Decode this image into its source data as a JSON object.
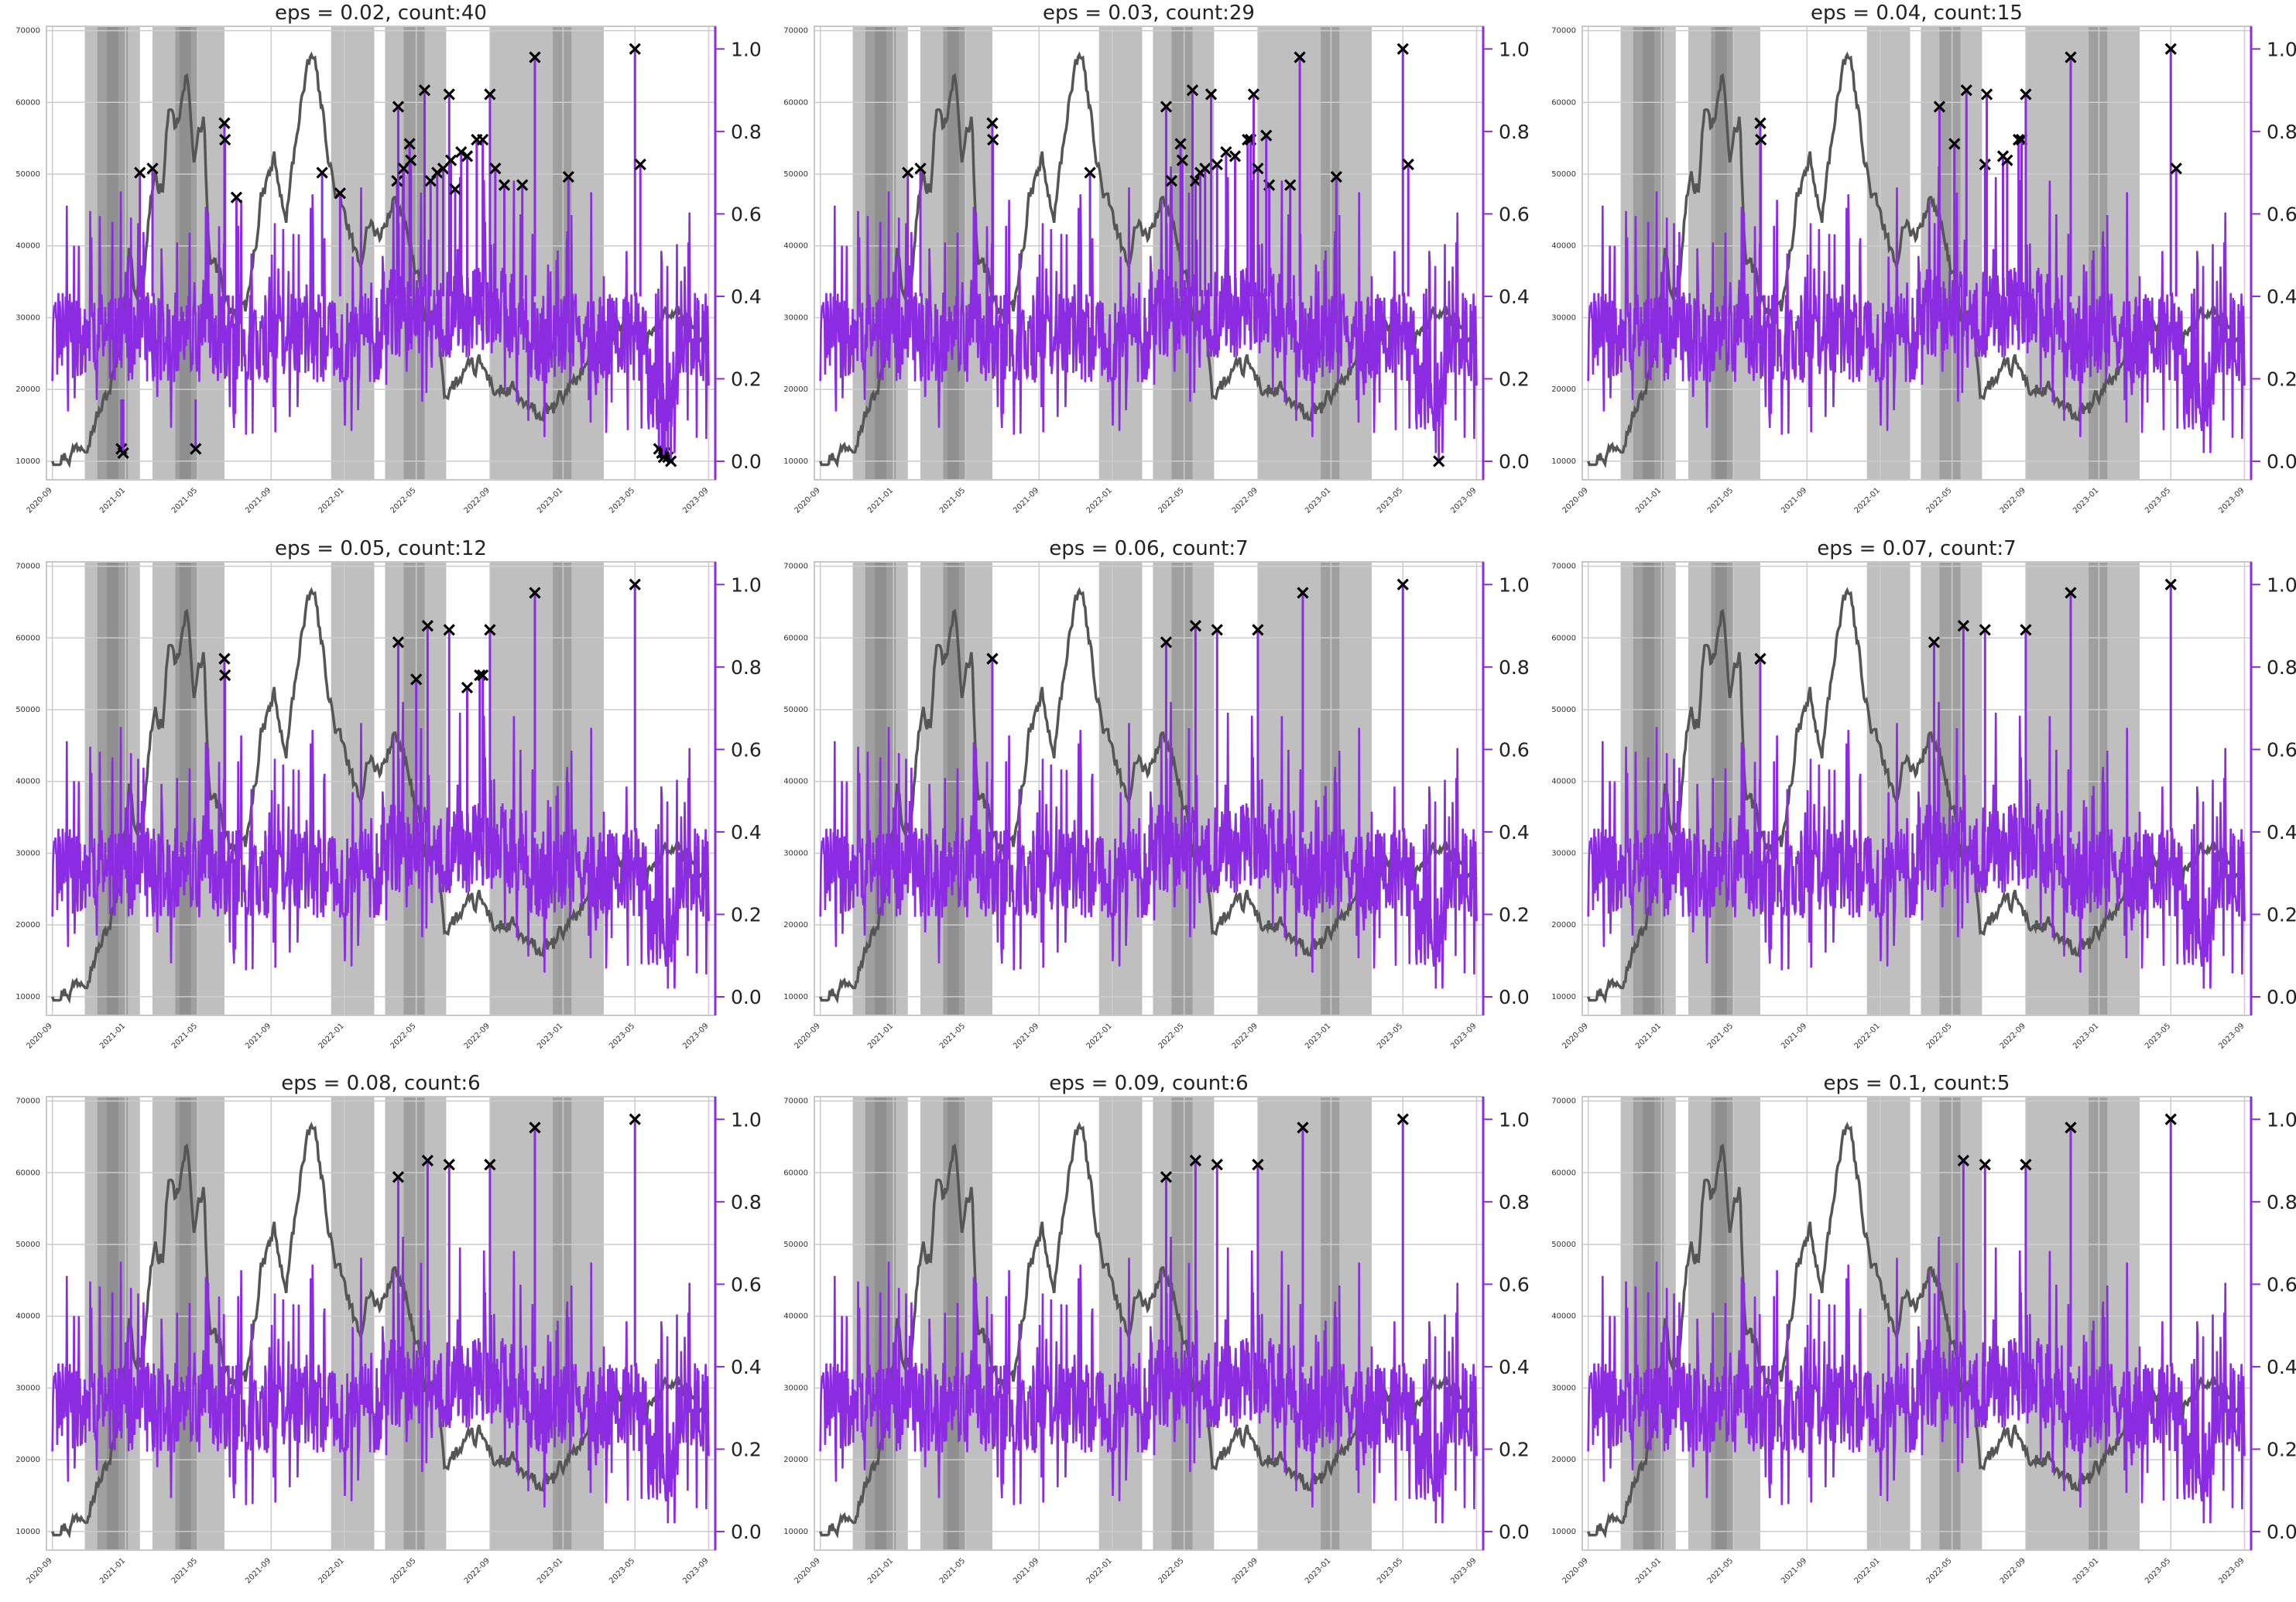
{
  "figure": {
    "colors": {
      "price_line": "#555555",
      "score_line": "#8B2BE2",
      "shade": "#808080",
      "grid": "#cccccc",
      "marker": "#000000",
      "right_axis": "#8B2BE2"
    },
    "shared_axes": {
      "x_ticks": [
        "2020-09",
        "2021-01",
        "2021-05",
        "2021-09",
        "2022-01",
        "2022-05",
        "2022-09",
        "2023-01",
        "2023-05",
        "2023-09"
      ],
      "left_y_ticks": [
        10000,
        20000,
        30000,
        40000,
        50000,
        60000,
        70000
      ],
      "right_y_ticks": [
        "0.0",
        "0.2",
        "0.4",
        "0.6",
        "0.8",
        "1.0"
      ]
    },
    "shaded_regions": [
      {
        "start": "2020-10-25",
        "end": "2021-01-25",
        "depth": 1
      },
      {
        "start": "2020-11-15",
        "end": "2021-01-05",
        "depth": 2
      },
      {
        "start": "2020-12-01",
        "end": "2020-12-20",
        "depth": 3
      },
      {
        "start": "2021-02-15",
        "end": "2021-06-15",
        "depth": 1
      },
      {
        "start": "2021-03-25",
        "end": "2021-05-01",
        "depth": 2
      },
      {
        "start": "2021-04-01",
        "end": "2021-04-20",
        "depth": 3
      },
      {
        "start": "2021-12-10",
        "end": "2022-02-20",
        "depth": 1
      },
      {
        "start": "2022-03-10",
        "end": "2022-06-20",
        "depth": 1
      },
      {
        "start": "2022-04-10",
        "end": "2022-05-15",
        "depth": 2
      },
      {
        "start": "2022-09-01",
        "end": "2023-03-10",
        "depth": 1
      },
      {
        "start": "2022-12-15",
        "end": "2023-01-15",
        "depth": 2
      }
    ]
  },
  "chart_data": [
    {
      "type": "line",
      "title": "eps = 0.02, count:40",
      "series": [
        {
          "axis": "left"
        },
        {
          "axis": "right"
        }
      ],
      "anomalies": [
        {
          "date": "2020-12-25",
          "value": 0.03
        },
        {
          "date": "2020-12-28",
          "value": 0.02
        },
        {
          "date": "2021-01-25",
          "value": 0.7
        },
        {
          "date": "2021-02-15",
          "value": 0.71
        },
        {
          "date": "2021-04-28",
          "value": 0.03
        },
        {
          "date": "2021-06-15",
          "value": 0.82
        },
        {
          "date": "2021-06-16",
          "value": 0.78
        },
        {
          "date": "2021-07-05",
          "value": 0.64
        },
        {
          "date": "2021-11-25",
          "value": 0.7
        },
        {
          "date": "2021-12-25",
          "value": 0.65
        },
        {
          "date": "2022-03-30",
          "value": 0.68
        },
        {
          "date": "2022-04-01",
          "value": 0.86
        },
        {
          "date": "2022-04-10",
          "value": 0.71
        },
        {
          "date": "2022-04-20",
          "value": 0.77
        },
        {
          "date": "2022-04-22",
          "value": 0.73
        },
        {
          "date": "2022-05-15",
          "value": 0.9
        },
        {
          "date": "2022-05-25",
          "value": 0.68
        },
        {
          "date": "2022-06-05",
          "value": 0.7
        },
        {
          "date": "2022-06-15",
          "value": 0.71
        },
        {
          "date": "2022-06-25",
          "value": 0.89
        },
        {
          "date": "2022-06-28",
          "value": 0.73
        },
        {
          "date": "2022-07-05",
          "value": 0.66
        },
        {
          "date": "2022-07-15",
          "value": 0.75
        },
        {
          "date": "2022-07-25",
          "value": 0.74
        },
        {
          "date": "2022-08-10",
          "value": 0.78
        },
        {
          "date": "2022-08-20",
          "value": 0.78
        },
        {
          "date": "2022-09-01",
          "value": 0.89
        },
        {
          "date": "2022-09-10",
          "value": 0.71
        },
        {
          "date": "2022-09-25",
          "value": 0.67
        },
        {
          "date": "2022-10-25",
          "value": 0.67
        },
        {
          "date": "2022-11-15",
          "value": 0.98
        },
        {
          "date": "2023-01-10",
          "value": 0.69
        },
        {
          "date": "2023-05-01",
          "value": 1.0
        },
        {
          "date": "2023-05-10",
          "value": 0.72
        },
        {
          "date": "2023-06-10",
          "value": 0.03
        },
        {
          "date": "2023-06-15",
          "value": 0.02
        },
        {
          "date": "2023-06-20",
          "value": 0.02
        },
        {
          "date": "2023-06-25",
          "value": 0.01
        },
        {
          "date": "2023-06-30",
          "value": 0.0
        },
        {
          "date": "2023-06-18",
          "value": 0.01
        }
      ]
    },
    {
      "type": "line",
      "title": "eps = 0.03, count:29",
      "series": [
        {
          "axis": "left"
        },
        {
          "axis": "right"
        }
      ],
      "anomalies": [
        {
          "date": "2021-01-25",
          "value": 0.7
        },
        {
          "date": "2021-02-15",
          "value": 0.71
        },
        {
          "date": "2021-06-15",
          "value": 0.82
        },
        {
          "date": "2021-06-16",
          "value": 0.78
        },
        {
          "date": "2021-11-25",
          "value": 0.7
        },
        {
          "date": "2022-04-01",
          "value": 0.86
        },
        {
          "date": "2022-04-10",
          "value": 0.68
        },
        {
          "date": "2022-04-25",
          "value": 0.77
        },
        {
          "date": "2022-04-28",
          "value": 0.73
        },
        {
          "date": "2022-05-15",
          "value": 0.9
        },
        {
          "date": "2022-05-20",
          "value": 0.68
        },
        {
          "date": "2022-05-28",
          "value": 0.7
        },
        {
          "date": "2022-06-05",
          "value": 0.71
        },
        {
          "date": "2022-06-15",
          "value": 0.89
        },
        {
          "date": "2022-06-25",
          "value": 0.72
        },
        {
          "date": "2022-07-10",
          "value": 0.75
        },
        {
          "date": "2022-07-25",
          "value": 0.74
        },
        {
          "date": "2022-08-15",
          "value": 0.78
        },
        {
          "date": "2022-08-20",
          "value": 0.78
        },
        {
          "date": "2022-08-25",
          "value": 0.89
        },
        {
          "date": "2022-09-01",
          "value": 0.71
        },
        {
          "date": "2022-09-20",
          "value": 0.67
        },
        {
          "date": "2022-10-25",
          "value": 0.67
        },
        {
          "date": "2022-11-10",
          "value": 0.98
        },
        {
          "date": "2023-01-10",
          "value": 0.69
        },
        {
          "date": "2023-05-01",
          "value": 1.0
        },
        {
          "date": "2023-05-10",
          "value": 0.72
        },
        {
          "date": "2023-06-30",
          "value": 0.0
        },
        {
          "date": "2022-09-15",
          "value": 0.79
        }
      ]
    },
    {
      "type": "line",
      "title": "eps = 0.04, count:15",
      "series": [
        {
          "axis": "left"
        },
        {
          "axis": "right"
        }
      ],
      "anomalies": [
        {
          "date": "2021-06-15",
          "value": 0.82
        },
        {
          "date": "2021-06-16",
          "value": 0.78
        },
        {
          "date": "2022-04-10",
          "value": 0.86
        },
        {
          "date": "2022-05-05",
          "value": 0.77
        },
        {
          "date": "2022-05-25",
          "value": 0.9
        },
        {
          "date": "2022-06-25",
          "value": 0.72
        },
        {
          "date": "2022-06-28",
          "value": 0.89
        },
        {
          "date": "2022-07-25",
          "value": 0.74
        },
        {
          "date": "2022-08-01",
          "value": 0.73
        },
        {
          "date": "2022-08-20",
          "value": 0.78
        },
        {
          "date": "2022-08-25",
          "value": 0.78
        },
        {
          "date": "2022-09-01",
          "value": 0.89
        },
        {
          "date": "2022-11-15",
          "value": 0.98
        },
        {
          "date": "2023-05-01",
          "value": 1.0
        },
        {
          "date": "2023-05-10",
          "value": 0.71
        }
      ]
    },
    {
      "type": "line",
      "title": "eps = 0.05, count:12",
      "series": [
        {
          "axis": "left"
        },
        {
          "axis": "right"
        }
      ],
      "anomalies": [
        {
          "date": "2021-06-15",
          "value": 0.82
        },
        {
          "date": "2021-06-16",
          "value": 0.78
        },
        {
          "date": "2022-04-01",
          "value": 0.86
        },
        {
          "date": "2022-05-01",
          "value": 0.77
        },
        {
          "date": "2022-05-20",
          "value": 0.9
        },
        {
          "date": "2022-06-25",
          "value": 0.89
        },
        {
          "date": "2022-07-25",
          "value": 0.75
        },
        {
          "date": "2022-08-15",
          "value": 0.78
        },
        {
          "date": "2022-08-20",
          "value": 0.78
        },
        {
          "date": "2022-09-01",
          "value": 0.89
        },
        {
          "date": "2022-11-15",
          "value": 0.98
        },
        {
          "date": "2023-05-01",
          "value": 1.0
        }
      ]
    },
    {
      "type": "line",
      "title": "eps = 0.06, count:7",
      "series": [
        {
          "axis": "left"
        },
        {
          "axis": "right"
        }
      ],
      "anomalies": [
        {
          "date": "2021-06-15",
          "value": 0.82
        },
        {
          "date": "2022-04-01",
          "value": 0.86
        },
        {
          "date": "2022-05-20",
          "value": 0.9
        },
        {
          "date": "2022-06-25",
          "value": 0.89
        },
        {
          "date": "2022-09-01",
          "value": 0.89
        },
        {
          "date": "2022-11-15",
          "value": 0.98
        },
        {
          "date": "2023-05-01",
          "value": 1.0
        }
      ]
    },
    {
      "type": "line",
      "title": "eps = 0.07, count:7",
      "series": [
        {
          "axis": "left"
        },
        {
          "axis": "right"
        }
      ],
      "anomalies": [
        {
          "date": "2021-06-15",
          "value": 0.82
        },
        {
          "date": "2022-04-01",
          "value": 0.86
        },
        {
          "date": "2022-05-20",
          "value": 0.9
        },
        {
          "date": "2022-06-25",
          "value": 0.89
        },
        {
          "date": "2022-09-01",
          "value": 0.89
        },
        {
          "date": "2022-11-15",
          "value": 0.98
        },
        {
          "date": "2023-05-01",
          "value": 1.0
        }
      ]
    },
    {
      "type": "line",
      "title": "eps = 0.08, count:6",
      "series": [
        {
          "axis": "left"
        },
        {
          "axis": "right"
        }
      ],
      "anomalies": [
        {
          "date": "2022-04-01",
          "value": 0.86
        },
        {
          "date": "2022-05-20",
          "value": 0.9
        },
        {
          "date": "2022-06-25",
          "value": 0.89
        },
        {
          "date": "2022-09-01",
          "value": 0.89
        },
        {
          "date": "2022-11-15",
          "value": 0.98
        },
        {
          "date": "2023-05-01",
          "value": 1.0
        }
      ]
    },
    {
      "type": "line",
      "title": "eps = 0.09, count:6",
      "series": [
        {
          "axis": "left"
        },
        {
          "axis": "right"
        }
      ],
      "anomalies": [
        {
          "date": "2022-04-01",
          "value": 0.86
        },
        {
          "date": "2022-05-20",
          "value": 0.9
        },
        {
          "date": "2022-06-25",
          "value": 0.89
        },
        {
          "date": "2022-09-01",
          "value": 0.89
        },
        {
          "date": "2022-11-15",
          "value": 0.98
        },
        {
          "date": "2023-05-01",
          "value": 1.0
        }
      ]
    },
    {
      "type": "line",
      "title": "eps = 0.1, count:5",
      "series": [
        {
          "axis": "left"
        },
        {
          "axis": "right"
        }
      ],
      "anomalies": [
        {
          "date": "2022-05-20",
          "value": 0.9
        },
        {
          "date": "2022-06-25",
          "value": 0.89
        },
        {
          "date": "2022-09-01",
          "value": 0.89
        },
        {
          "date": "2022-11-15",
          "value": 0.98
        },
        {
          "date": "2023-05-01",
          "value": 1.0
        }
      ]
    }
  ]
}
